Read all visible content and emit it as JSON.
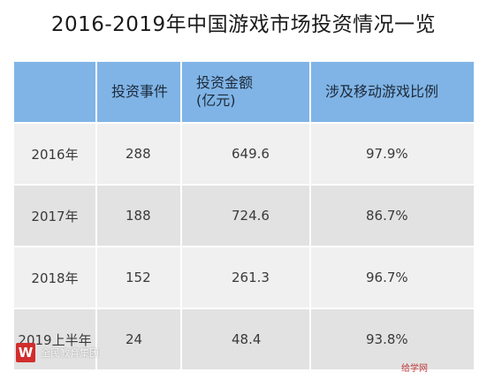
{
  "chart_data": {
    "type": "table",
    "title": "2016-2019年中国游戏市场投资情况一览",
    "columns": [
      "",
      "投资事件",
      "投资金额\n(亿元)",
      "涉及移动游戏比例"
    ],
    "rows": [
      [
        "2016年",
        "288",
        "649.6",
        "97.9%"
      ],
      [
        "2017年",
        "188",
        "724.6",
        "86.7%"
      ],
      [
        "2018年",
        "152",
        "261.3",
        "96.7%"
      ],
      [
        "2019上半年",
        "24",
        "48.4",
        "93.8%"
      ]
    ]
  },
  "watermark": {
    "logo_glyph": "W",
    "text": "全民教育集团",
    "right_text": "给学网"
  },
  "colors": {
    "header_bg": "#80b4e6",
    "row_light": "#f0f0f0",
    "row_dark": "#e2e2e2"
  }
}
